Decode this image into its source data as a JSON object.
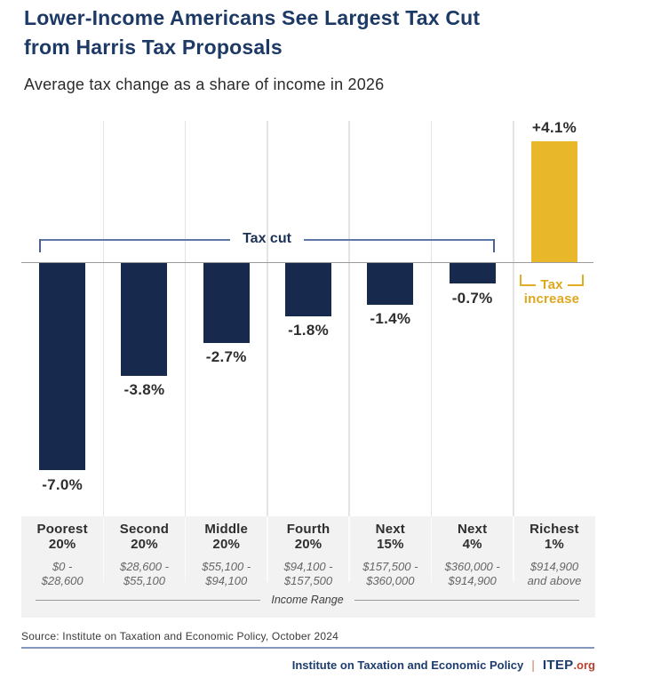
{
  "header": {
    "title_line1": "Lower-Income Americans See Largest Tax Cut",
    "title_line2": "from Harris Tax Proposals",
    "subtitle": "Average tax change as a share of income in 2026"
  },
  "chart_data": {
    "type": "bar",
    "title": "Lower-Income Americans See Largest Tax Cut from Harris Tax Proposals",
    "subtitle": "Average tax change as a share of income in 2026",
    "xlabel": "Income Range",
    "ylabel": "Average tax change as a share of income (%)",
    "ylim": [
      -7.5,
      4.8
    ],
    "grid": "vertical column separators only, no y-axis ticks shown",
    "legend_position": "none",
    "categories": [
      {
        "name": [
          "Poorest",
          "20%"
        ],
        "range": [
          "$0 -",
          "$28,600"
        ],
        "value": -7.0,
        "label": "-7.0%"
      },
      {
        "name": [
          "Second",
          "20%"
        ],
        "range": [
          "$28,600 -",
          "$55,100"
        ],
        "value": -3.8,
        "label": "-3.8%"
      },
      {
        "name": [
          "Middle",
          "20%"
        ],
        "range": [
          "$55,100 -",
          "$94,100"
        ],
        "value": -2.7,
        "label": "-2.7%"
      },
      {
        "name": [
          "Fourth",
          "20%"
        ],
        "range": [
          "$94,100 -",
          "$157,500"
        ],
        "value": -1.8,
        "label": "-1.8%"
      },
      {
        "name": [
          "Next",
          "15%"
        ],
        "range": [
          "$157,500 -",
          "$360,000"
        ],
        "value": -1.4,
        "label": "-1.4%"
      },
      {
        "name": [
          "Next",
          "4%"
        ],
        "range": [
          "$360,000 -",
          "$914,900"
        ],
        "value": -0.7,
        "label": "-0.7%"
      },
      {
        "name": [
          "Richest",
          "1%"
        ],
        "range": [
          "$914,900",
          "and above"
        ],
        "value": 4.1,
        "label": "+4.1%"
      }
    ]
  },
  "annotations": {
    "tax_cut_label": "Tax cut",
    "tax_increase_line1": "Tax",
    "tax_increase_line2": "increase"
  },
  "footer": {
    "source": "Source: Institute on Taxation and Economic Policy, October 2024",
    "org_name": "Institute on Taxation and Economic Policy",
    "separator": "|",
    "brand": "ITEP",
    "brand_suffix": ".org"
  },
  "colors": {
    "tax_cut_bar": "#17294d",
    "tax_increase_bar": "#e8b72a",
    "title_navy": "#1d3a66",
    "brand_red": "#b5432e",
    "label_box_bg": "#f2f2f2"
  }
}
